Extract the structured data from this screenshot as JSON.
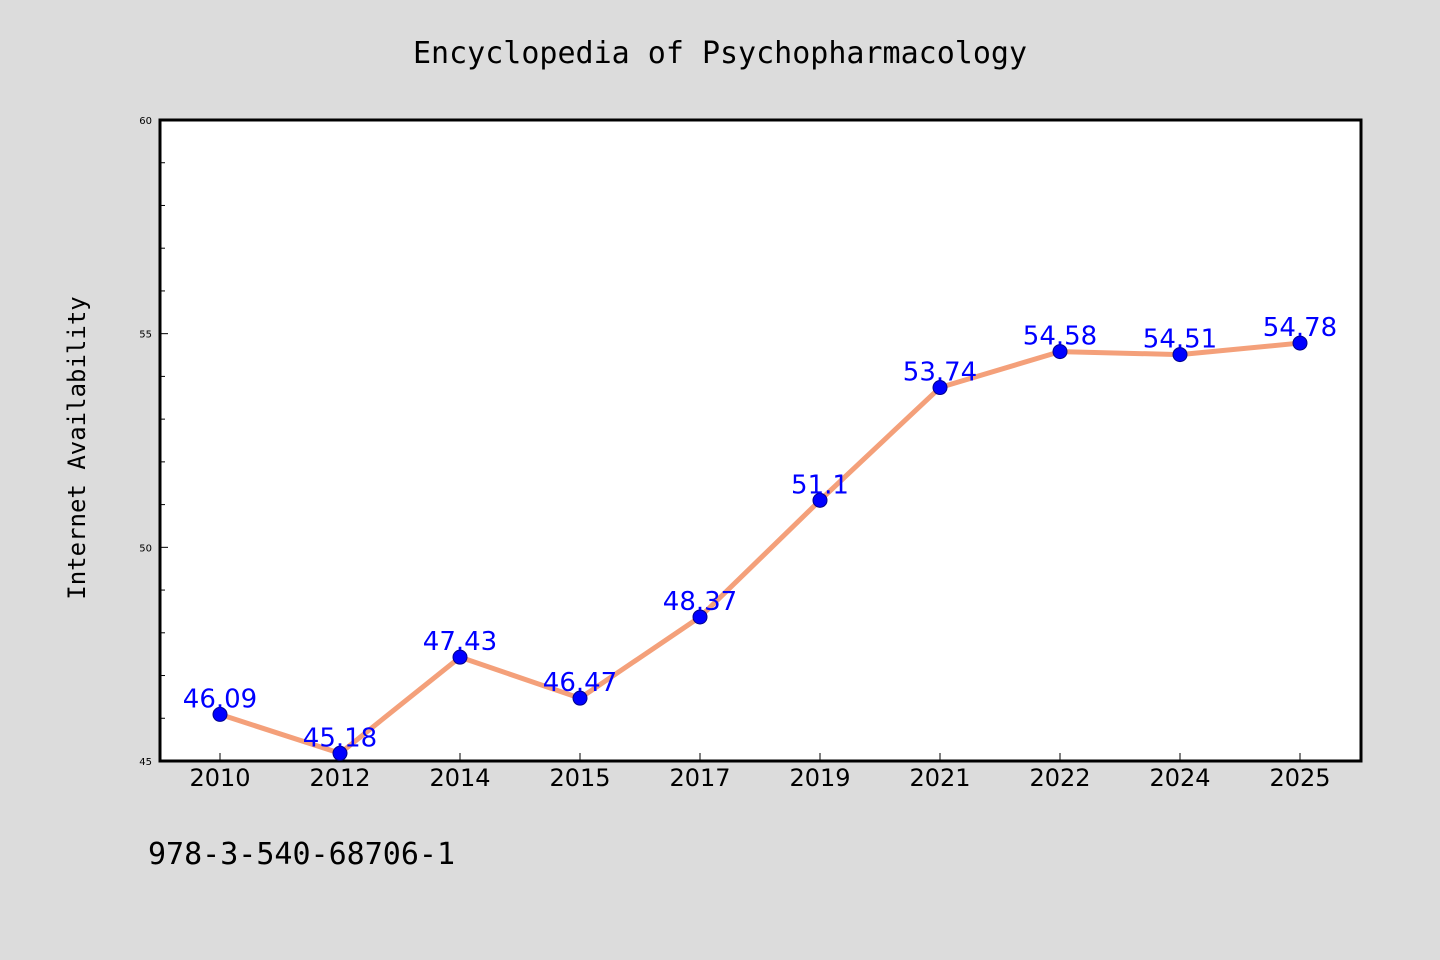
{
  "chart_data": {
    "type": "line",
    "title": "Encyclopedia of Psychopharmacology",
    "xlabel": "",
    "ylabel": "Internet Availability",
    "categories": [
      "2010",
      "2012",
      "2014",
      "2015",
      "2017",
      "2019",
      "2021",
      "2022",
      "2024",
      "2025"
    ],
    "series": [
      {
        "values": [
          46.09,
          45.18,
          47.43,
          46.47,
          48.37,
          51.1,
          53.74,
          54.58,
          54.51,
          54.78
        ],
        "data_labels": [
          "46.09",
          "45.18",
          "47.43",
          "46.47",
          "48.37",
          "51.1",
          "53.74",
          "54.58",
          "54.51",
          "54.78"
        ],
        "line_color": "#f4a07a",
        "marker_color": "#0000ff",
        "label_color": "#0000ff"
      }
    ],
    "ylim": [
      45,
      60
    ],
    "yticks": [
      "45",
      "50",
      "55",
      "60"
    ],
    "grid": false,
    "legend": "none",
    "background_color": "#dcdcdc",
    "plot_background_color": "#ffffff"
  },
  "footer_text": "978-3-540-68706-1"
}
